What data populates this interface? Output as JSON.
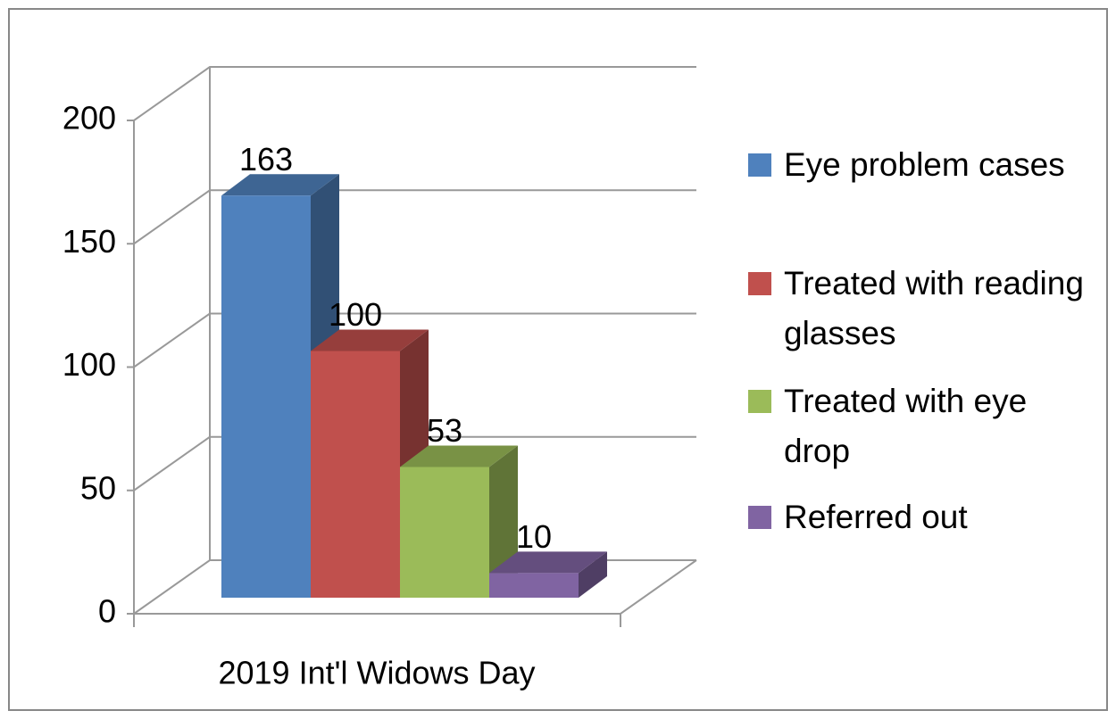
{
  "chart_data": {
    "type": "bar3d",
    "categories": [
      "2019 Int'l Widows Day"
    ],
    "series": [
      {
        "name": "Eye problem cases",
        "color": "#4f81bd",
        "values": [
          163
        ]
      },
      {
        "name": "Treated with reading glasses",
        "color": "#c0504d",
        "values": [
          100
        ]
      },
      {
        "name": "Treated with eye drop",
        "color": "#9bbb59",
        "values": [
          53
        ]
      },
      {
        "name": "Referred out",
        "color": "#8064a2",
        "values": [
          10
        ]
      }
    ],
    "ylim": [
      0,
      200
    ],
    "yticks": [
      0,
      50,
      100,
      150,
      200
    ],
    "grid": true,
    "legend": "right"
  }
}
